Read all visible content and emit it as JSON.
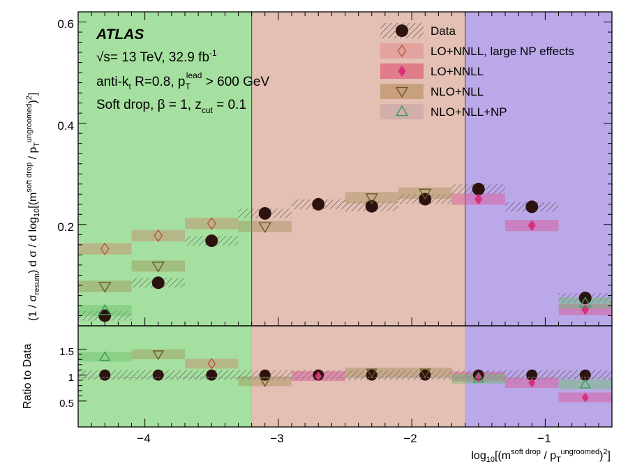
{
  "chart_data": {
    "type": "scatter",
    "collaboration": "ATLAS",
    "energy_line": "√s= 13 TeV, 32.9 fb-1",
    "jet_line": "anti-kt R=0.8, pTlead > 600 GeV",
    "softdrop_line": "Soft drop, β = 1, zcut = 0.1",
    "xlabel": "log10[(m^soft drop / pT^ungroomed)^2]",
    "ylabel_top": "(1 / σresum) dσ / d log10[(m^soft drop / pT^ungroomed)^2]",
    "ylabel_bottom": "Ratio to Data",
    "xlim": [
      -4.5,
      -0.5
    ],
    "ylim_top": [
      0,
      0.62
    ],
    "ylim_bottom": [
      0,
      1.95
    ],
    "x_ticks": [
      "−4",
      "−3",
      "−2",
      "−1"
    ],
    "y_ticks_top": [
      "0.2",
      "0.4",
      "0.6"
    ],
    "y_ticks_bottom": [
      "0.5",
      "1",
      "1.5"
    ],
    "regions": [
      {
        "x_from": -4.5,
        "x_to": -3.2,
        "color": "#a6e0a0"
      },
      {
        "x_from": -3.2,
        "x_to": -1.6,
        "color": "#e3c0b3"
      },
      {
        "x_from": -1.6,
        "x_to": -0.5,
        "color": "#bba8e8"
      }
    ],
    "bins": [
      -4.5,
      -4.1,
      -3.7,
      -3.3,
      -2.9,
      -2.5,
      -2.1,
      -1.7,
      -1.3,
      -0.9,
      -0.5
    ],
    "x_points": [
      -4.3,
      -3.9,
      -3.5,
      -3.1,
      -2.7,
      -2.3,
      -1.9,
      -1.5,
      -1.1,
      -0.7
    ],
    "legend": [
      {
        "label": "Data",
        "marker": "circle"
      },
      {
        "label": "LO+NNLL, large NP effects",
        "marker": "open-diamond"
      },
      {
        "label": "LO+NNLL",
        "marker": "filled-diamond"
      },
      {
        "label": "NLO+NLL",
        "marker": "open-down-triangle"
      },
      {
        "label": "NLO+NLL+NP",
        "marker": "open-up-triangle"
      }
    ],
    "series": [
      {
        "name": "Data",
        "values": [
          0.02,
          0.085,
          0.168,
          0.222,
          0.24,
          0.236,
          0.25,
          0.27,
          0.235,
          0.055
        ],
        "ratio": [
          1.0,
          1.0,
          1.0,
          1.0,
          1.0,
          1.0,
          1.0,
          1.0,
          1.0,
          1.0
        ]
      },
      {
        "name": "LO+NNLL, large NP effects",
        "values": [
          0.152,
          0.178,
          0.202,
          null,
          null,
          null,
          null,
          null,
          null,
          null
        ],
        "ratio": [
          null,
          null,
          1.22,
          null,
          null,
          null,
          null,
          null,
          null,
          null
        ]
      },
      {
        "name": "LO+NNLL",
        "values": [
          null,
          null,
          null,
          null,
          null,
          null,
          null,
          0.25,
          0.198,
          0.032
        ],
        "ratio": [
          null,
          null,
          null,
          null,
          0.98,
          null,
          null,
          0.97,
          0.85,
          0.57
        ]
      },
      {
        "name": "NLO+NLL",
        "values": [
          0.078,
          0.118,
          null,
          0.196,
          null,
          0.253,
          0.262,
          null,
          null,
          null
        ],
        "ratio": [
          null,
          1.4,
          null,
          0.88,
          null,
          1.05,
          1.05,
          null,
          null,
          null
        ]
      },
      {
        "name": "NLO+NLL+NP",
        "values": [
          0.03,
          null,
          null,
          null,
          null,
          null,
          null,
          null,
          null,
          0.045
        ],
        "ratio": [
          1.35,
          null,
          null,
          null,
          null,
          null,
          null,
          0.93,
          null,
          0.82
        ]
      }
    ]
  }
}
